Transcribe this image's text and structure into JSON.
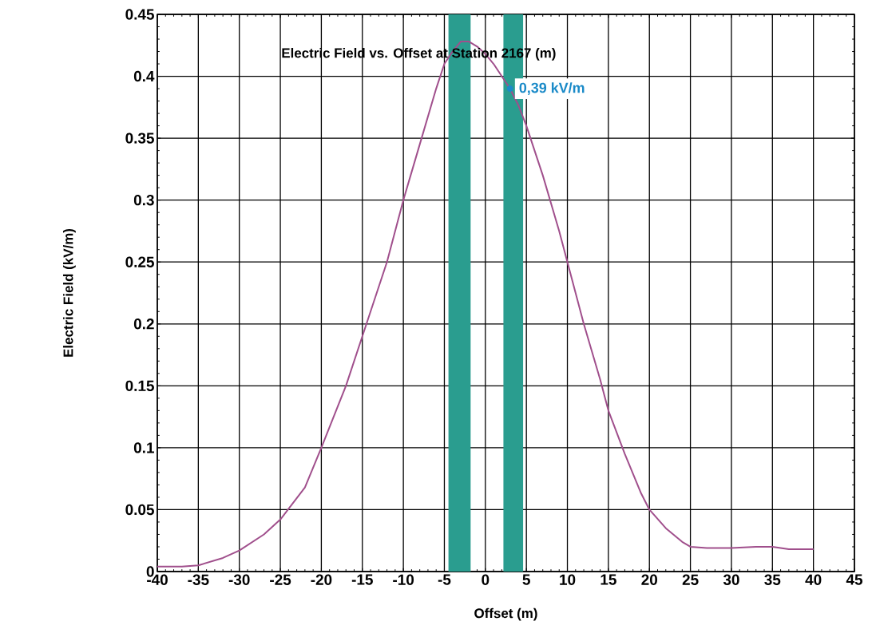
{
  "chart_data": {
    "type": "line",
    "title": "Electric Field vs. Offset at Station 2167 (m)",
    "xlabel": "Offset (m)",
    "ylabel": "Electric Field (kV/m)",
    "x": [
      -40,
      -37,
      -35,
      -32,
      -30,
      -27,
      -25,
      -22,
      -20,
      -17,
      -15,
      -12,
      -10,
      -8,
      -6,
      -5,
      -4,
      -3,
      -2,
      -1,
      0,
      1,
      2,
      3,
      4,
      5,
      7,
      9,
      10,
      12,
      14,
      15,
      17,
      19,
      20,
      22,
      24,
      25,
      27,
      30,
      33,
      35,
      37,
      40
    ],
    "series": [
      {
        "color": "#a04f8c",
        "values": [
          0.004,
          0.004,
          0.005,
          0.011,
          0.017,
          0.03,
          0.042,
          0.068,
          0.1,
          0.15,
          0.19,
          0.25,
          0.3,
          0.345,
          0.39,
          0.41,
          0.42,
          0.428,
          0.428,
          0.424,
          0.418,
          0.41,
          0.4,
          0.39,
          0.377,
          0.36,
          0.32,
          0.275,
          0.25,
          0.2,
          0.155,
          0.13,
          0.095,
          0.063,
          0.05,
          0.035,
          0.024,
          0.02,
          0.019,
          0.019,
          0.02,
          0.02,
          0.018,
          0.018
        ]
      }
    ],
    "xlim": [
      -40,
      45
    ],
    "ylim": [
      0,
      0.45
    ],
    "xticks": [
      -40,
      -35,
      -30,
      -25,
      -20,
      -15,
      -10,
      -5,
      0,
      5,
      10,
      15,
      20,
      25,
      30,
      35,
      40,
      45
    ],
    "yticks": [
      0,
      0.05,
      0.1,
      0.15,
      0.2,
      0.25,
      0.3,
      0.35,
      0.4,
      0.45
    ],
    "bands": [
      {
        "axis": "x",
        "from": -4.5,
        "to": -1.8,
        "color": "#2a9d8f"
      },
      {
        "axis": "x",
        "from": 2.2,
        "to": 4.6,
        "color": "#2a9d8f"
      }
    ],
    "annotations": [
      {
        "text": "0,39 kV/m",
        "x": 3,
        "y": 0.39
      }
    ],
    "grid": true,
    "marker": "none",
    "line_style": "solid"
  }
}
